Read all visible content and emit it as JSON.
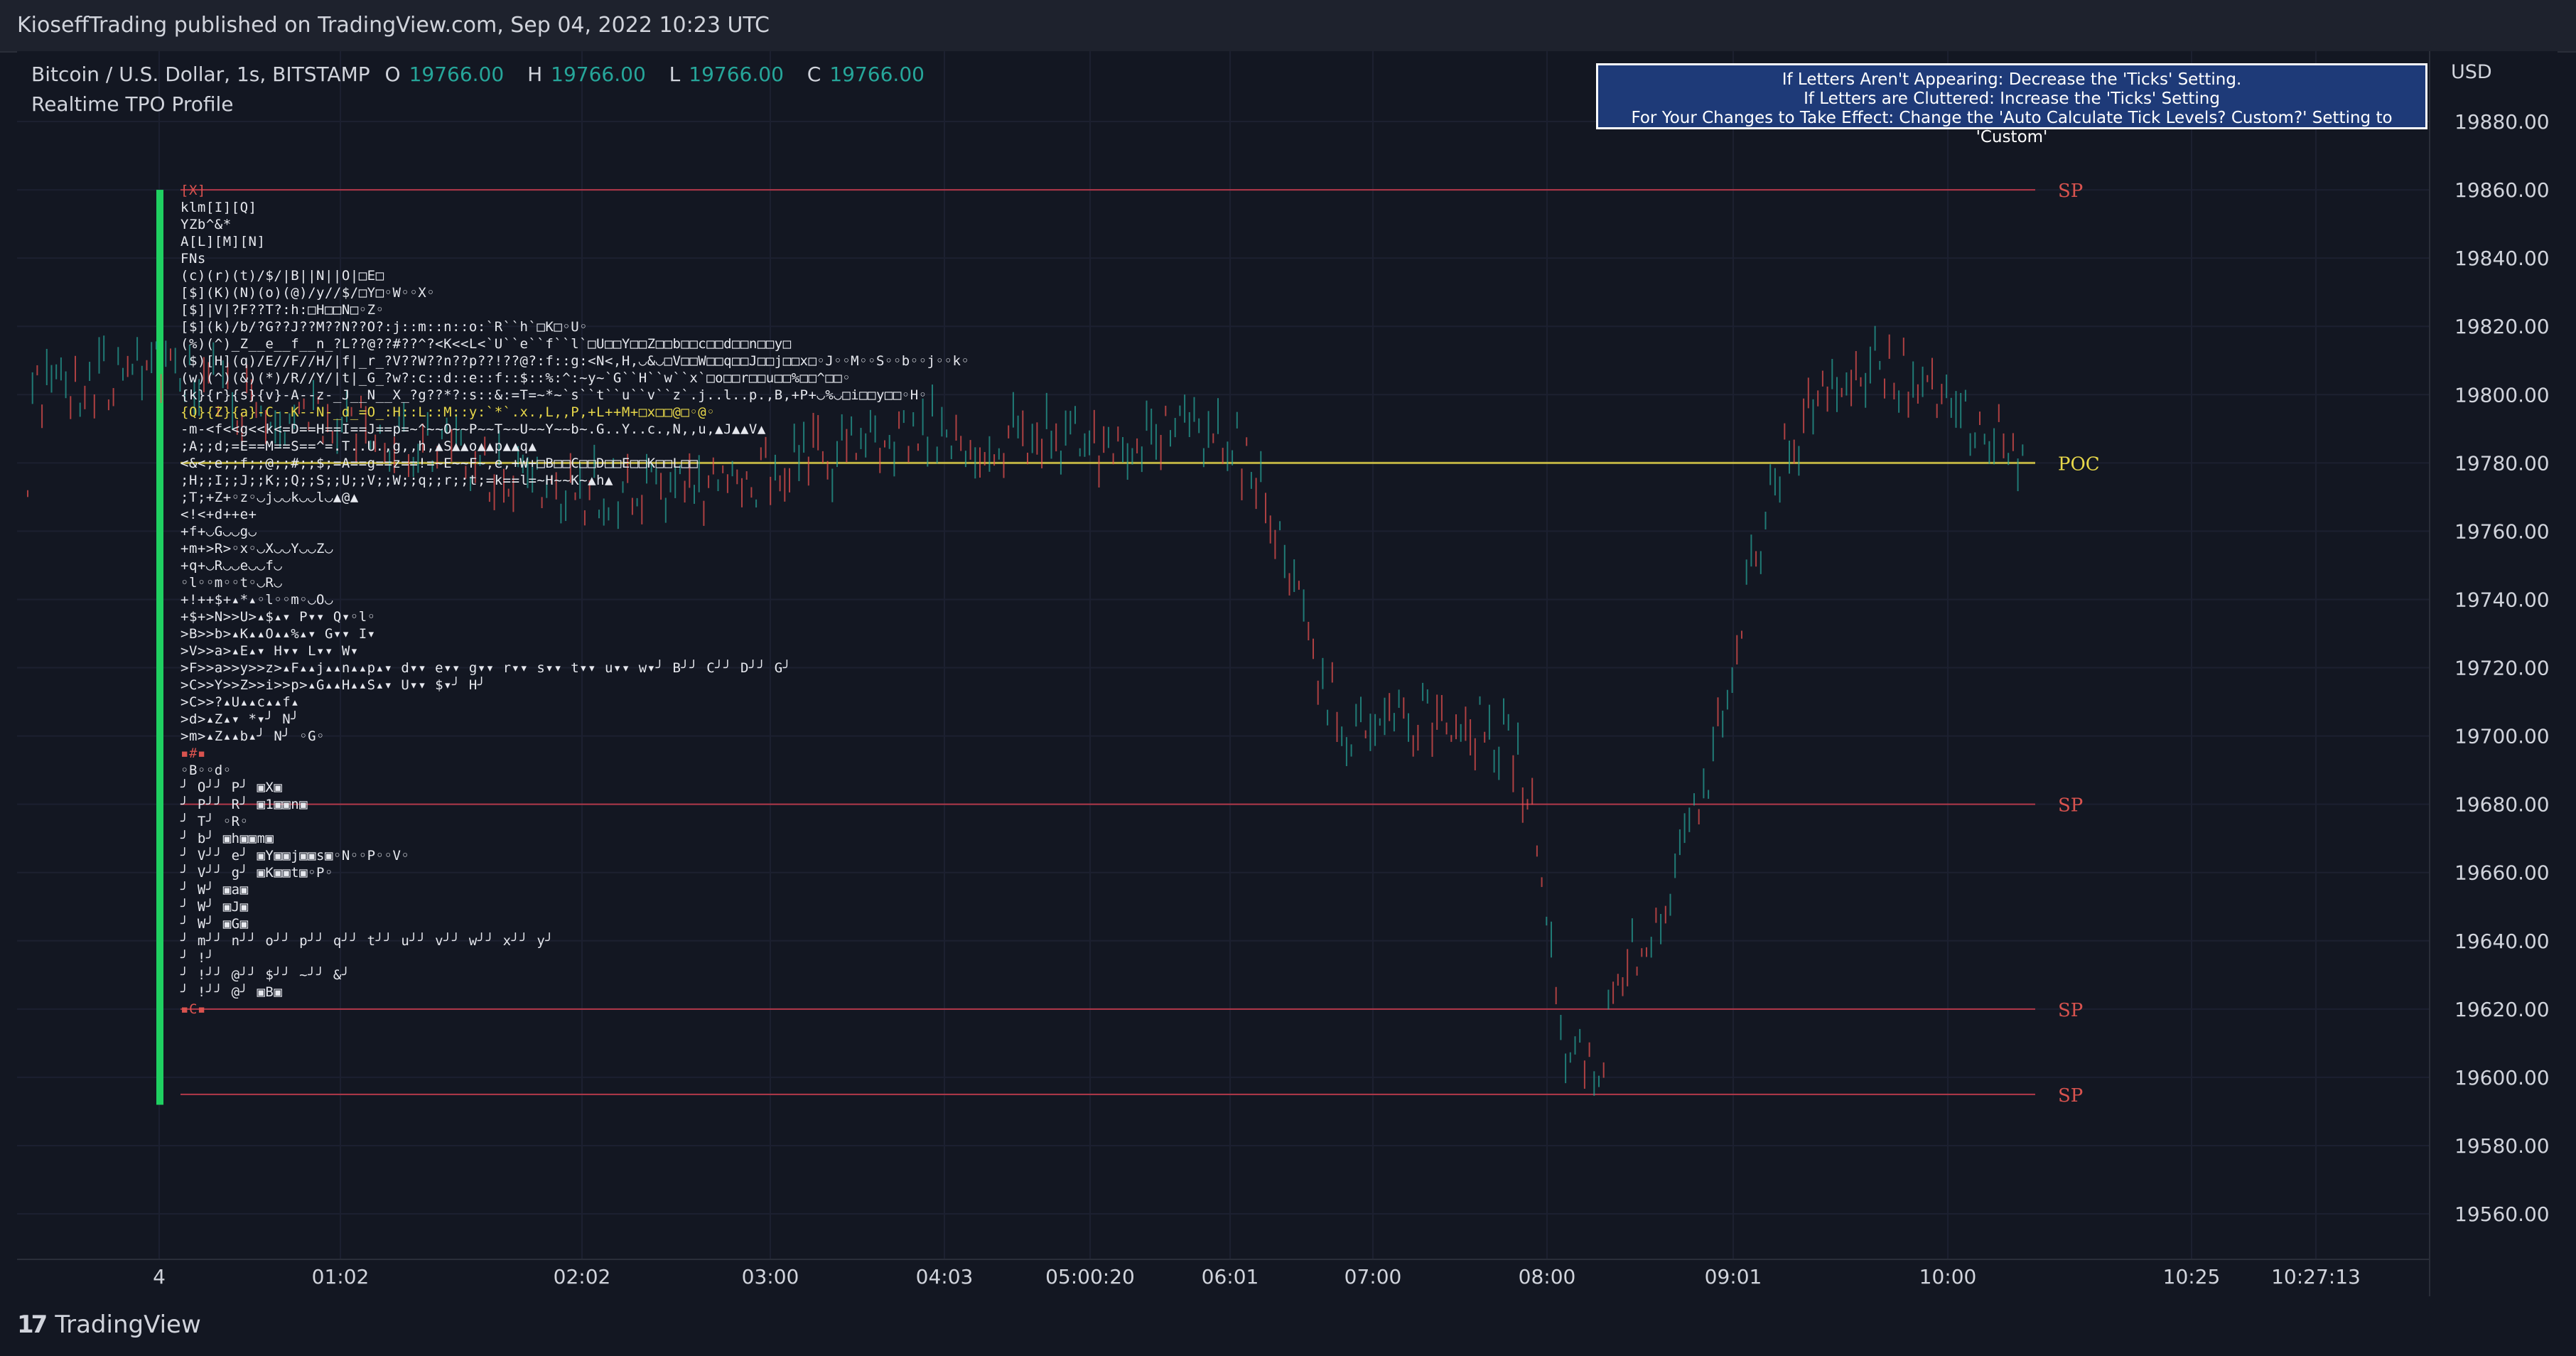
{
  "publisher": "KioseffTrading published on TradingView.com, Sep 04, 2022 10:23 UTC",
  "symbol": {
    "name": "Bitcoin / U.S. Dollar, 1s, BITSTAMP",
    "o_label": "O",
    "o": "19766.00",
    "h_label": "H",
    "h": "19766.00",
    "l_label": "L",
    "l": "19766.00",
    "c_label": "C",
    "c": "19766.00"
  },
  "indicator_name": "Realtime TPO Profile",
  "notice": [
    "If Letters Aren't Appearing: Decrease the 'Ticks' Setting.",
    "If Letters are Cluttered: Increase the 'Ticks' Setting",
    "For Your Changes to Take Effect: Change the 'Auto Calculate Tick Levels? Custom?' Setting to 'Custom'"
  ],
  "currency": "USD",
  "price_axis": [
    "19880.00",
    "19860.00",
    "19840.00",
    "19820.00",
    "19800.00",
    "19780.00",
    "19760.00",
    "19740.00",
    "19720.00",
    "19700.00",
    "19680.00",
    "19660.00",
    "19640.00",
    "19620.00",
    "19600.00",
    "19580.00",
    "19560.00"
  ],
  "time_axis": [
    "4",
    "01:02",
    "02:02",
    "03:00",
    "04:03",
    "05:00:20",
    "06:01",
    "07:00",
    "08:00",
    "09:01",
    "10:00",
    "10:25",
    "10:27:13"
  ],
  "level_labels": {
    "sp": "SP",
    "poc": "POC"
  },
  "tpo_top": "[X]",
  "tpo_rows": [
    "klm[I][Q]",
    "YZb^&*",
    "A[L][M][N]",
    "FNs",
    "",
    "(c)(r)(t)/$/|B||N||O|□E□",
    "[$](K)(N)(o)(@)/y//$/□Y□◦W◦◦X◦",
    "[$]|V|?F??T?:h:□H□□N□◦Z◦",
    "[$](k)/b/?G??J??M??N??O?:j::m::n::o:`R``h`□K□◦U◦",
    "(%)(^)_Z__e__f__n_?L??@??#??^?<K<<L<`U``e``f``l`□U□□Y□□Z□□b□□c□□d□□n□□y□",
    "($)[H](q)/E//F//H/|f|_r_?V??W??n??p??!??@?:f::g:<N<,H,◡&◡□V□□W□□q□□J□□j□□x□◦J◦◦M◦◦S◦◦b◦◦j◦◦k◦",
    "(w)(^)(&)(*)/R//Y/|t|_G_?w?:c::d::e::f::$::%:^:~y~`G``H``w``x`□o□□r□□u□□%□□^□□◦",
    "{k}{r}{s}{v}-A--z-_J__N__X_?g??*?:s::&:=T=~*~`s``t``u``v``z`.j..l..p.,B,+P+◡%◡□i□□y□□◦H◦",
    "{Q}{Z}{a}-C--K--N-_d_=O_:H::L::M::y:`*`.x.,L,,P,+L++M+□x□□@□◦@◦",
    "-m-<f<<g<<k<=D==H==I==J==p=~^~~O~~P~~T~~U~~Y~~b~.G..Y..c.,N,,u,▲J▲▲V▲",
    ";A;;d;=E==M==S==^=.T..U.,g,,h,▲S▲▲o▲▲p▲▲q▲",
    "<&<;e;;f;;@;;#;;$;=A==g==z==!=~E~~F~,e,+W+□B□□C□□D□□E□□K□□L□□",
    ";H;;I;;J;;K;;Q;;S;;U;;V;;W;;q;;r;;t;=k==l=~H~~K~▲h▲",
    ";T;+Z+◦z◦◡j◡◡k◡◡l◡▲@▲",
    "<!<+d++e+",
    "+f+◡G◡◡g◡",
    "+m+>R>◦x◦◡X◡◡Y◡◡Z◡",
    "+q+◡R◡◡e◡◡f◡",
    "◦l◦◦m◦◦t◦◡R◡",
    "+!++$+▴*▴◦l◦◦m◦◡O◡",
    "+$+>N>>U>▴$▴▾ P▾▾ Q▾◦l◦",
    ">B>>b>▴K▴▴O▴▴%▴▾ G▾▾ I▾",
    ">V>>a>▴E▴▾ H▾▾ L▾▾ W▾",
    ">F>>a>>y>>z>▴F▴▴j▴▴n▴▴p▴▾ d▾▾ e▾▾ g▾▾ r▾▾ s▾▾ t▾▾ u▾▾ w▾╯ B╯╯ C╯╯ D╯╯ G╯",
    ">C>>Y>>Z>>i>>p>▴G▴▴H▴▴S▴▾ U▾▾ $▾╯ H╯",
    ">C>>?▴U▴▴c▴▴f▴",
    ">d>▴Z▴▾ *▾╯ N╯",
    ">m>▴Z▴▴b▴╯ N╯ ◦G◦"
  ],
  "tpo_rows_lower": [
    "▪#▪",
    "◦B◦◦d◦",
    "╯ O╯╯ P╯ ▣X▣",
    "╯ P╯╯ R╯ ▣1▣▣n▣",
    "╯ T╯ ◦R◦",
    "╯ b╯ ▣h▣▣m▣",
    "╯ V╯╯ e╯ ▣Y▣▣j▣▣s▣◦N◦◦P◦◦V◦",
    "╯ V╯╯ g╯ ▣K▣▣t▣◦P◦",
    "╯ W╯ ▣a▣",
    "╯ W╯ ▣J▣",
    "╯ W╯ ▣G▣",
    "╯ m╯╯ n╯╯ o╯╯ p╯╯ q╯╯ t╯╯ u╯╯ v╯╯ w╯╯ x╯╯ y╯",
    "╯ !╯",
    "",
    "╯ !╯╯ @╯╯ $╯╯ ~╯╯ &╯",
    "╯ !╯╯ @╯ ▣B▣",
    "▪C▪"
  ],
  "footer_brand": "TradingView",
  "colors": {
    "background": "#131722",
    "up": "#26a69a",
    "down": "#ef5350",
    "poc": "#e8d84a",
    "sp": "#b2384a",
    "profile_bar": "#1fd061",
    "notice_bg": "#1e3a78"
  }
}
